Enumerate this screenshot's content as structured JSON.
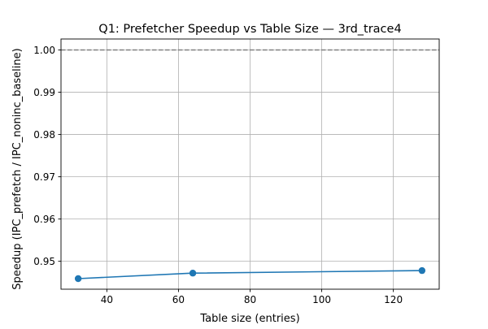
{
  "chart_data": {
    "type": "line",
    "title": "Q1: Prefetcher Speedup vs Table Size — 3rd_trace4",
    "xlabel": "Table size (entries)",
    "ylabel": "Speedup (IPC_prefetch / IPC_noninc_baseline)",
    "xlim": [
      27.2,
      132.8
    ],
    "ylim": [
      0.9434,
      1.0026
    ],
    "x_ticks": [
      40,
      60,
      80,
      100,
      120
    ],
    "y_ticks": [
      0.95,
      0.96,
      0.97,
      0.98,
      0.99,
      1.0
    ],
    "x_tick_labels": [
      "40",
      "60",
      "80",
      "100",
      "120"
    ],
    "y_tick_labels": [
      "0.95",
      "0.96",
      "0.97",
      "0.98",
      "0.99",
      "1.00"
    ],
    "grid": true,
    "reference_line": {
      "y": 1.0,
      "style": "dashed",
      "color": "#808080"
    },
    "series": [
      {
        "x": [
          32,
          64,
          128
        ],
        "y": [
          0.9459,
          0.9472,
          0.9478
        ],
        "color": "#1f77b4",
        "marker": "circle"
      }
    ]
  }
}
